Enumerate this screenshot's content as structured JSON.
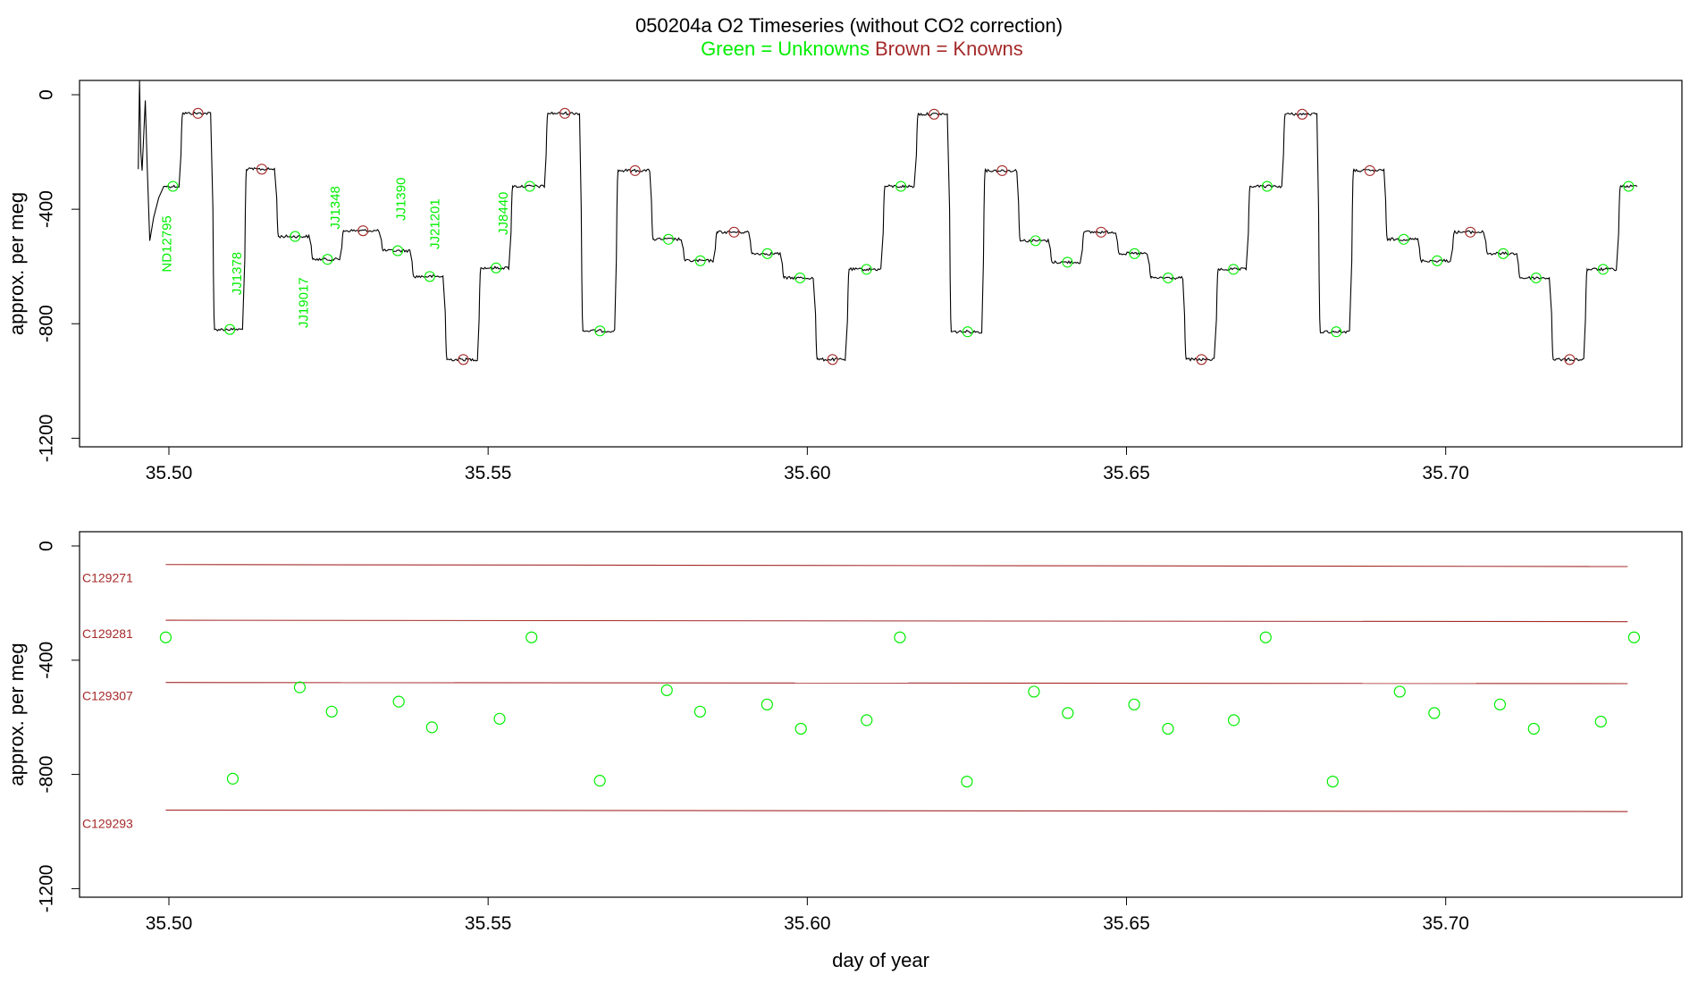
{
  "figure": {
    "title": "050204a   O2 Timeseries (without CO2 correction)",
    "subtitle_unknowns": "Green = Unknowns",
    "subtitle_knowns": "Brown = Knowns"
  },
  "colors": {
    "unknown": "#00ee00",
    "known": "#a52a2a",
    "trace": "#000000",
    "frame": "#000000"
  },
  "chart_data": [
    {
      "type": "line",
      "panel": "top",
      "title": "",
      "xlabel": "",
      "ylabel": "approx. per meg",
      "xlim": [
        35.486,
        35.737
      ],
      "ylim": [
        -1230,
        50
      ],
      "x_ticks": [
        35.5,
        35.55,
        35.6,
        35.65,
        35.7
      ],
      "x_tick_labels": [
        "35.50",
        "35.55",
        "35.60",
        "35.65",
        "35.70"
      ],
      "y_ticks": [
        0,
        -400,
        -800,
        -1200
      ],
      "y_tick_labels": [
        "0",
        "-400",
        "-800",
        "-1200"
      ],
      "steps": [
        {
          "x0": 35.4992,
          "x1": 35.5018,
          "y": -320,
          "type": "unknown"
        },
        {
          "x0": 35.5018,
          "x1": 35.5068,
          "y": -65,
          "type": "known"
        },
        {
          "x0": 35.5068,
          "x1": 35.5118,
          "y": -820,
          "type": "unknown"
        },
        {
          "x0": 35.5118,
          "x1": 35.5168,
          "y": -260,
          "type": "known"
        },
        {
          "x0": 35.5168,
          "x1": 35.5222,
          "y": -495,
          "type": "unknown"
        },
        {
          "x0": 35.5222,
          "x1": 35.527,
          "y": -575,
          "type": "unknown"
        },
        {
          "x0": 35.527,
          "x1": 35.5332,
          "y": -475,
          "type": "known"
        },
        {
          "x0": 35.5332,
          "x1": 35.538,
          "y": -545,
          "type": "unknown"
        },
        {
          "x0": 35.538,
          "x1": 35.5432,
          "y": -635,
          "type": "unknown"
        },
        {
          "x0": 35.5432,
          "x1": 35.5485,
          "y": -925,
          "type": "known"
        },
        {
          "x0": 35.5485,
          "x1": 35.5535,
          "y": -605,
          "type": "unknown"
        },
        {
          "x0": 35.5535,
          "x1": 35.559,
          "y": -320,
          "type": "unknown"
        },
        {
          "x0": 35.559,
          "x1": 35.5645,
          "y": -65,
          "type": "known"
        },
        {
          "x0": 35.5645,
          "x1": 35.57,
          "y": -825,
          "type": "unknown"
        },
        {
          "x0": 35.57,
          "x1": 35.5755,
          "y": -265,
          "type": "known"
        },
        {
          "x0": 35.5755,
          "x1": 35.5805,
          "y": -505,
          "type": "unknown"
        },
        {
          "x0": 35.5805,
          "x1": 35.5855,
          "y": -580,
          "type": "unknown"
        },
        {
          "x0": 35.5855,
          "x1": 35.591,
          "y": -480,
          "type": "known"
        },
        {
          "x0": 35.591,
          "x1": 35.596,
          "y": -555,
          "type": "unknown"
        },
        {
          "x0": 35.596,
          "x1": 35.6012,
          "y": -640,
          "type": "unknown"
        },
        {
          "x0": 35.6012,
          "x1": 35.6062,
          "y": -925,
          "type": "known"
        },
        {
          "x0": 35.6062,
          "x1": 35.6118,
          "y": -610,
          "type": "unknown"
        },
        {
          "x0": 35.6118,
          "x1": 35.617,
          "y": -320,
          "type": "unknown"
        },
        {
          "x0": 35.617,
          "x1": 35.6222,
          "y": -68,
          "type": "known"
        },
        {
          "x0": 35.6222,
          "x1": 35.6275,
          "y": -828,
          "type": "unknown"
        },
        {
          "x0": 35.6275,
          "x1": 35.633,
          "y": -265,
          "type": "known"
        },
        {
          "x0": 35.633,
          "x1": 35.638,
          "y": -510,
          "type": "unknown"
        },
        {
          "x0": 35.638,
          "x1": 35.643,
          "y": -585,
          "type": "unknown"
        },
        {
          "x0": 35.643,
          "x1": 35.6485,
          "y": -480,
          "type": "known"
        },
        {
          "x0": 35.6485,
          "x1": 35.6535,
          "y": -555,
          "type": "unknown"
        },
        {
          "x0": 35.6535,
          "x1": 35.659,
          "y": -640,
          "type": "unknown"
        },
        {
          "x0": 35.659,
          "x1": 35.664,
          "y": -925,
          "type": "known"
        },
        {
          "x0": 35.664,
          "x1": 35.669,
          "y": -610,
          "type": "unknown"
        },
        {
          "x0": 35.669,
          "x1": 35.6745,
          "y": -320,
          "type": "unknown"
        },
        {
          "x0": 35.6745,
          "x1": 35.68,
          "y": -68,
          "type": "known"
        },
        {
          "x0": 35.68,
          "x1": 35.6852,
          "y": -828,
          "type": "unknown"
        },
        {
          "x0": 35.6852,
          "x1": 35.6905,
          "y": -265,
          "type": "known"
        },
        {
          "x0": 35.6905,
          "x1": 35.6958,
          "y": -505,
          "type": "unknown"
        },
        {
          "x0": 35.6958,
          "x1": 35.701,
          "y": -580,
          "type": "unknown"
        },
        {
          "x0": 35.701,
          "x1": 35.7062,
          "y": -480,
          "type": "known"
        },
        {
          "x0": 35.7062,
          "x1": 35.7113,
          "y": -555,
          "type": "unknown"
        },
        {
          "x0": 35.7113,
          "x1": 35.7165,
          "y": -640,
          "type": "unknown"
        },
        {
          "x0": 35.7165,
          "x1": 35.7218,
          "y": -925,
          "type": "known"
        },
        {
          "x0": 35.7218,
          "x1": 35.727,
          "y": -610,
          "type": "unknown"
        },
        {
          "x0": 35.727,
          "x1": 35.73,
          "y": -320,
          "type": "unknown"
        }
      ],
      "start_spike": [
        {
          "x": 35.4952,
          "y": -260
        },
        {
          "x": 35.4954,
          "y": 50
        },
        {
          "x": 35.4956,
          "y": -200
        },
        {
          "x": 35.4958,
          "y": -265
        },
        {
          "x": 35.4963,
          "y": -20
        },
        {
          "x": 35.4966,
          "y": -250
        },
        {
          "x": 35.497,
          "y": -510
        },
        {
          "x": 35.4976,
          "y": -430
        },
        {
          "x": 35.4984,
          "y": -360
        },
        {
          "x": 35.4992,
          "y": -320
        }
      ],
      "sample_labels": [
        {
          "text": "ND12795",
          "x": 35.4998,
          "y": -620
        },
        {
          "text": "JJ1378",
          "x": 35.5108,
          "y": -700
        },
        {
          "text": "JJ19017",
          "x": 35.5212,
          "y": -815
        },
        {
          "text": "JJ1348",
          "x": 35.5262,
          "y": -470
        },
        {
          "text": "JJ1390",
          "x": 35.5365,
          "y": -440
        },
        {
          "text": "JJ21201",
          "x": 35.5418,
          "y": -540
        },
        {
          "text": "JJ8440",
          "x": 35.5525,
          "y": -490
        }
      ]
    },
    {
      "type": "scatter",
      "panel": "bottom",
      "title": "",
      "xlabel": "day of year",
      "ylabel": "approx. per meg",
      "xlim": [
        35.486,
        35.737
      ],
      "ylim": [
        -1230,
        50
      ],
      "x_ticks": [
        35.5,
        35.55,
        35.6,
        35.65,
        35.7
      ],
      "x_tick_labels": [
        "35.50",
        "35.55",
        "35.60",
        "35.65",
        "35.70"
      ],
      "y_ticks": [
        0,
        -400,
        -800,
        -1200
      ],
      "y_tick_labels": [
        "0",
        "-400",
        "-800",
        "-1200"
      ],
      "known_lines": [
        {
          "name": "C129271",
          "x0": 35.4995,
          "y0": -65,
          "x1": 35.7285,
          "y1": -72
        },
        {
          "name": "C129281",
          "x0": 35.4995,
          "y0": -260,
          "x1": 35.7285,
          "y1": -265
        },
        {
          "name": "C129307",
          "x0": 35.4995,
          "y0": -478,
          "x1": 35.7285,
          "y1": -482
        },
        {
          "name": "C129293",
          "x0": 35.4995,
          "y0": -925,
          "x1": 35.7285,
          "y1": -930
        }
      ],
      "unknown_points": [
        {
          "x": 35.4995,
          "y": -320
        },
        {
          "x": 35.51,
          "y": -815
        },
        {
          "x": 35.5205,
          "y": -495
        },
        {
          "x": 35.5255,
          "y": -580
        },
        {
          "x": 35.536,
          "y": -545
        },
        {
          "x": 35.5412,
          "y": -635
        },
        {
          "x": 35.5518,
          "y": -605
        },
        {
          "x": 35.5568,
          "y": -320
        },
        {
          "x": 35.5675,
          "y": -822
        },
        {
          "x": 35.578,
          "y": -505
        },
        {
          "x": 35.5832,
          "y": -580
        },
        {
          "x": 35.5937,
          "y": -555
        },
        {
          "x": 35.599,
          "y": -640
        },
        {
          "x": 35.6093,
          "y": -610
        },
        {
          "x": 35.6145,
          "y": -320
        },
        {
          "x": 35.625,
          "y": -825
        },
        {
          "x": 35.6355,
          "y": -510
        },
        {
          "x": 35.6408,
          "y": -585
        },
        {
          "x": 35.6512,
          "y": -555
        },
        {
          "x": 35.6565,
          "y": -640
        },
        {
          "x": 35.6668,
          "y": -610
        },
        {
          "x": 35.6718,
          "y": -320
        },
        {
          "x": 35.6823,
          "y": -825
        },
        {
          "x": 35.6928,
          "y": -510
        },
        {
          "x": 35.6982,
          "y": -585
        },
        {
          "x": 35.7085,
          "y": -555
        },
        {
          "x": 35.7138,
          "y": -640
        },
        {
          "x": 35.7243,
          "y": -615
        },
        {
          "x": 35.7295,
          "y": -320
        }
      ]
    }
  ]
}
